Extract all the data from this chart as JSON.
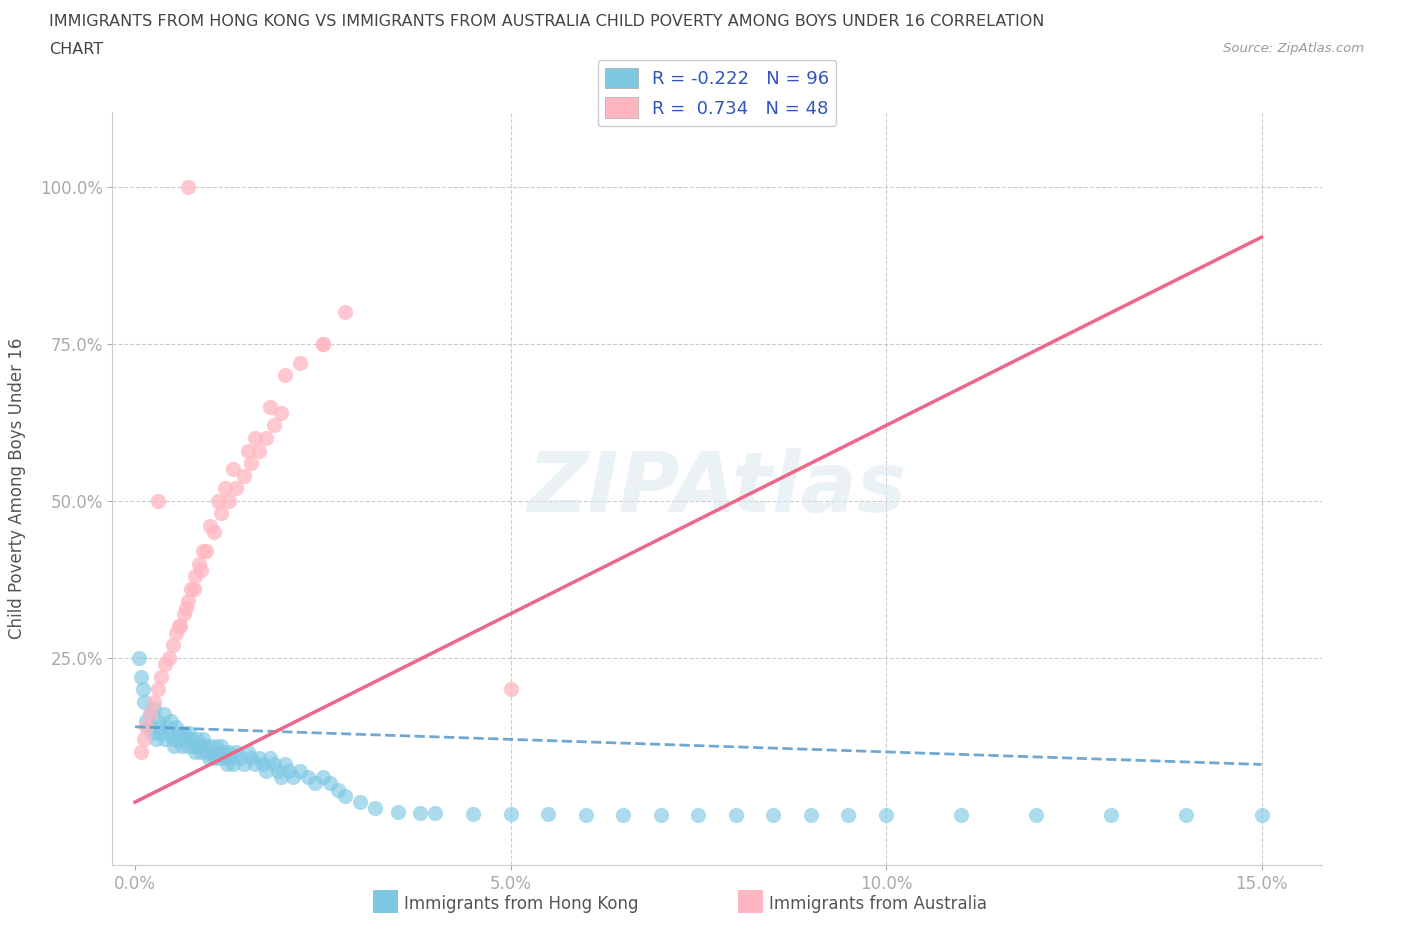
{
  "title_line1": "IMMIGRANTS FROM HONG KONG VS IMMIGRANTS FROM AUSTRALIA CHILD POVERTY AMONG BOYS UNDER 16 CORRELATION",
  "title_line2": "CHART",
  "source": "Source: ZipAtlas.com",
  "ylabel": "Child Poverty Among Boys Under 16",
  "x_tick_labels": [
    "0.0%",
    "5.0%",
    "10.0%",
    "15.0%"
  ],
  "x_tick_vals": [
    0.0,
    5.0,
    10.0,
    15.0
  ],
  "y_tick_labels": [
    "25.0%",
    "50.0%",
    "75.0%",
    "100.0%"
  ],
  "y_tick_vals": [
    25.0,
    50.0,
    75.0,
    100.0
  ],
  "xlim": [
    -0.3,
    15.8
  ],
  "ylim": [
    -8.0,
    112.0
  ],
  "hk_color": "#7ec8e3",
  "aus_color": "#ffb6c1",
  "hk_line_color": "#5599cc",
  "aus_line_color": "#ee6688",
  "hk_R": -0.222,
  "hk_N": 96,
  "aus_R": 0.734,
  "aus_N": 48,
  "watermark": "ZIPAtlas",
  "background_color": "#ffffff",
  "grid_color": "#cccccc",
  "legend_text_color": "#3355bb",
  "hk_scatter_x": [
    0.05,
    0.08,
    0.1,
    0.12,
    0.15,
    0.18,
    0.2,
    0.22,
    0.25,
    0.28,
    0.3,
    0.32,
    0.35,
    0.38,
    0.4,
    0.42,
    0.45,
    0.48,
    0.5,
    0.52,
    0.55,
    0.58,
    0.6,
    0.62,
    0.65,
    0.68,
    0.7,
    0.72,
    0.75,
    0.78,
    0.8,
    0.82,
    0.85,
    0.88,
    0.9,
    0.92,
    0.95,
    0.98,
    1.0,
    1.02,
    1.05,
    1.08,
    1.1,
    1.12,
    1.15,
    1.18,
    1.2,
    1.22,
    1.25,
    1.28,
    1.3,
    1.35,
    1.4,
    1.45,
    1.5,
    1.55,
    1.6,
    1.65,
    1.7,
    1.75,
    1.8,
    1.85,
    1.9,
    1.95,
    2.0,
    2.05,
    2.1,
    2.2,
    2.3,
    2.4,
    2.5,
    2.6,
    2.7,
    2.8,
    3.0,
    3.2,
    3.5,
    3.8,
    4.0,
    4.5,
    5.0,
    5.5,
    6.0,
    6.5,
    7.0,
    7.5,
    8.0,
    8.5,
    9.0,
    9.5,
    10.0,
    11.0,
    12.0,
    13.0,
    14.0,
    15.0
  ],
  "hk_scatter_y": [
    25.0,
    22.0,
    20.0,
    18.0,
    15.0,
    14.0,
    16.0,
    13.0,
    17.0,
    12.0,
    15.0,
    14.0,
    13.0,
    16.0,
    12.0,
    14.0,
    13.0,
    15.0,
    12.0,
    11.0,
    14.0,
    13.0,
    12.0,
    11.0,
    13.0,
    12.0,
    11.0,
    13.0,
    12.0,
    11.0,
    10.0,
    12.0,
    11.0,
    10.0,
    12.0,
    11.0,
    10.0,
    9.0,
    11.0,
    10.0,
    9.0,
    11.0,
    10.0,
    9.0,
    11.0,
    10.0,
    9.0,
    8.0,
    10.0,
    9.0,
    8.0,
    10.0,
    9.0,
    8.0,
    10.0,
    9.0,
    8.0,
    9.0,
    8.0,
    7.0,
    9.0,
    8.0,
    7.0,
    6.0,
    8.0,
    7.0,
    6.0,
    7.0,
    6.0,
    5.0,
    6.0,
    5.0,
    4.0,
    3.0,
    2.0,
    1.0,
    0.5,
    0.3,
    0.2,
    0.1,
    0.05,
    0.03,
    0.02,
    0.01,
    0.005,
    0.003,
    0.002,
    0.001,
    0.0005,
    0.0003,
    0.0002,
    0.0001,
    5e-05,
    3e-05,
    2e-05,
    1e-05
  ],
  "aus_scatter_x": [
    0.08,
    0.12,
    0.15,
    0.2,
    0.25,
    0.3,
    0.35,
    0.4,
    0.5,
    0.55,
    0.6,
    0.65,
    0.7,
    0.75,
    0.8,
    0.85,
    0.9,
    1.0,
    1.1,
    1.2,
    1.3,
    1.5,
    1.6,
    1.8,
    2.0,
    2.2,
    2.5,
    2.8,
    0.45,
    0.58,
    0.68,
    0.78,
    0.88,
    0.95,
    1.05,
    1.15,
    1.25,
    1.35,
    1.45,
    1.55,
    1.65,
    1.75,
    1.85,
    1.95,
    0.7,
    2.5,
    0.3,
    5.0
  ],
  "aus_scatter_y": [
    10.0,
    12.0,
    14.0,
    16.0,
    18.0,
    20.0,
    22.0,
    24.0,
    27.0,
    29.0,
    30.0,
    32.0,
    34.0,
    36.0,
    38.0,
    40.0,
    42.0,
    46.0,
    50.0,
    52.0,
    55.0,
    58.0,
    60.0,
    65.0,
    70.0,
    72.0,
    75.0,
    80.0,
    25.0,
    30.0,
    33.0,
    36.0,
    39.0,
    42.0,
    45.0,
    48.0,
    50.0,
    52.0,
    54.0,
    56.0,
    58.0,
    60.0,
    62.0,
    64.0,
    100.0,
    75.0,
    50.0,
    20.0
  ],
  "hk_trend_x": [
    0.0,
    15.0
  ],
  "hk_trend_y": [
    14.0,
    8.0
  ],
  "aus_trend_x": [
    0.0,
    15.0
  ],
  "aus_trend_y": [
    2.0,
    92.0
  ]
}
